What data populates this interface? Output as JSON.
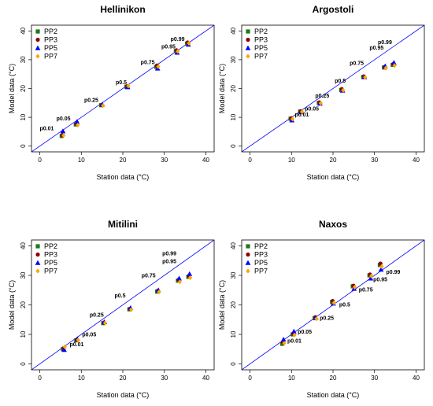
{
  "colors": {
    "PP2": "#1a7a1a",
    "PP3": "#8b0000",
    "PP5": "#0000ff",
    "PP7": "#ffa500",
    "identity": "#0000ff"
  },
  "legend": [
    "PP2",
    "PP3",
    "PP5",
    "PP7"
  ],
  "chart_data": [
    {
      "type": "scatter",
      "title": "Hellinikon",
      "xlabel": "Station data (°C)",
      "ylabel": "Model data (°C)",
      "xlim": [
        -2,
        42
      ],
      "ylim": [
        -2,
        42
      ],
      "xticks": [
        0,
        10,
        20,
        30,
        40
      ],
      "yticks": [
        0,
        10,
        20,
        30,
        40
      ],
      "reference_line": "y = x",
      "x": [
        5.5,
        8.9,
        15.0,
        21.1,
        28.3,
        33.0,
        35.7
      ],
      "series": [
        {
          "name": "PP2",
          "marker": "square",
          "values": [
            3.5,
            7.5,
            14.2,
            20.6,
            27.5,
            33.0,
            35.6
          ]
        },
        {
          "name": "PP3",
          "marker": "circle",
          "values": [
            3.8,
            7.7,
            14.3,
            20.8,
            28.0,
            33.3,
            36.0
          ]
        },
        {
          "name": "PP5",
          "marker": "triangle",
          "values": [
            5.2,
            8.5,
            14.5,
            20.5,
            27.0,
            32.5,
            35.3
          ]
        },
        {
          "name": "PP7",
          "marker": "diamond",
          "values": [
            3.7,
            7.3,
            14.1,
            20.9,
            27.6,
            32.9,
            35.7
          ]
        }
      ],
      "annotations": [
        {
          "text": "p0.01",
          "x": 0.0,
          "y": 5.5
        },
        {
          "text": "p0.05",
          "x": 4.0,
          "y": 9.0
        },
        {
          "text": "p0.25",
          "x": 10.7,
          "y": 15.3
        },
        {
          "text": "p0.5",
          "x": 18.3,
          "y": 21.5
        },
        {
          "text": "p0.75",
          "x": 24.3,
          "y": 28.5
        },
        {
          "text": "p0.95",
          "x": 29.3,
          "y": 34.0
        },
        {
          "text": "p0.99",
          "x": 31.5,
          "y": 36.5
        }
      ]
    },
    {
      "type": "scatter",
      "title": "Argostoli",
      "xlabel": "Station data (°C)",
      "ylabel": "Model data (°C)",
      "xlim": [
        -2,
        42
      ],
      "ylim": [
        -2,
        42
      ],
      "xticks": [
        0,
        10,
        20,
        30,
        40
      ],
      "yticks": [
        0,
        10,
        20,
        30,
        40
      ],
      "reference_line": "y = x",
      "x": [
        10.0,
        12.3,
        16.8,
        22.2,
        27.5,
        32.5,
        34.6
      ],
      "series": [
        {
          "name": "PP2",
          "marker": "square",
          "values": [
            9.5,
            12.0,
            15.0,
            19.5,
            24.0,
            27.3,
            28.2
          ]
        },
        {
          "name": "PP3",
          "marker": "circle",
          "values": [
            9.7,
            12.1,
            15.2,
            19.8,
            24.2,
            27.5,
            28.5
          ]
        },
        {
          "name": "PP5",
          "marker": "triangle",
          "values": [
            9.0,
            11.8,
            14.8,
            19.3,
            24.0,
            27.8,
            29.0
          ]
        },
        {
          "name": "PP7",
          "marker": "diamond",
          "values": [
            9.4,
            11.9,
            14.9,
            19.4,
            23.9,
            27.1,
            28.0
          ]
        }
      ],
      "annotations": [
        {
          "text": "p0.01",
          "x": 10.8,
          "y": 10.3
        },
        {
          "text": "p0.05",
          "x": 13.2,
          "y": 12.3
        },
        {
          "text": "p0.25",
          "x": 15.7,
          "y": 16.8
        },
        {
          "text": "p0.5",
          "x": 20.4,
          "y": 22.0
        },
        {
          "text": "p0.75",
          "x": 24.0,
          "y": 28.2
        },
        {
          "text": "p0.95",
          "x": 28.8,
          "y": 33.5
        },
        {
          "text": "p0.99",
          "x": 30.8,
          "y": 35.5
        }
      ]
    },
    {
      "type": "scatter",
      "title": "Mitilini",
      "xlabel": "Station data (°C)",
      "ylabel": "Model data (°C)",
      "xlim": [
        -2,
        42
      ],
      "ylim": [
        -2,
        42
      ],
      "xticks": [
        0,
        10,
        20,
        30,
        40
      ],
      "yticks": [
        0,
        10,
        20,
        30,
        40
      ],
      "reference_line": "y = x",
      "x": [
        5.8,
        9.0,
        15.5,
        21.8,
        28.5,
        33.5,
        36.0
      ],
      "series": [
        {
          "name": "PP2",
          "marker": "square",
          "values": [
            5.0,
            8.0,
            13.8,
            18.5,
            24.5,
            28.2,
            29.5
          ]
        },
        {
          "name": "PP3",
          "marker": "circle",
          "values": [
            5.3,
            8.2,
            14.0,
            18.7,
            24.8,
            28.5,
            29.8
          ]
        },
        {
          "name": "PP5",
          "marker": "triangle",
          "values": [
            4.8,
            8.5,
            14.2,
            19.0,
            25.0,
            29.0,
            30.5
          ]
        },
        {
          "name": "PP7",
          "marker": "diamond",
          "values": [
            5.8,
            8.1,
            13.9,
            18.4,
            24.4,
            27.8,
            29.2
          ]
        }
      ],
      "annotations": [
        {
          "text": "p0.01",
          "x": 7.2,
          "y": 6.0
        },
        {
          "text": "p0.05",
          "x": 10.2,
          "y": 9.3
        },
        {
          "text": "p0.25",
          "x": 12.0,
          "y": 16.0
        },
        {
          "text": "p0.5",
          "x": 18.0,
          "y": 22.5
        },
        {
          "text": "p0.75",
          "x": 24.5,
          "y": 29.3
        },
        {
          "text": "p0.95",
          "x": 29.5,
          "y": 34.2
        },
        {
          "text": "p0.99",
          "x": 29.5,
          "y": 36.8
        }
      ]
    },
    {
      "type": "scatter",
      "title": "Naxos",
      "xlabel": "Station data (°C)",
      "ylabel": "Model data (°C)",
      "xlim": [
        -2,
        42
      ],
      "ylim": [
        -2,
        42
      ],
      "xticks": [
        0,
        10,
        20,
        30,
        40
      ],
      "yticks": [
        0,
        10,
        20,
        30,
        40
      ],
      "reference_line": "y = x",
      "x": [
        8.0,
        10.5,
        15.8,
        20.0,
        25.0,
        29.0,
        31.5
      ],
      "series": [
        {
          "name": "PP2",
          "marker": "square",
          "values": [
            6.8,
            10.0,
            15.5,
            21.0,
            26.3,
            30.0,
            33.5
          ]
        },
        {
          "name": "PP3",
          "marker": "circle",
          "values": [
            7.3,
            10.2,
            15.8,
            21.3,
            26.5,
            30.3,
            34.0
          ]
        },
        {
          "name": "PP5",
          "marker": "triangle",
          "values": [
            8.3,
            11.0,
            15.7,
            20.5,
            25.5,
            29.0,
            32.0
          ]
        },
        {
          "name": "PP7",
          "marker": "diamond",
          "values": [
            7.0,
            9.8,
            15.3,
            20.7,
            26.0,
            29.8,
            33.0
          ]
        }
      ],
      "annotations": [
        {
          "text": "p0.01",
          "x": 9.0,
          "y": 7.2
        },
        {
          "text": "p0.05",
          "x": 11.5,
          "y": 10.3
        },
        {
          "text": "p0.25",
          "x": 16.8,
          "y": 15.0
        },
        {
          "text": "p0.5",
          "x": 21.5,
          "y": 19.5
        },
        {
          "text": "p0.75",
          "x": 26.2,
          "y": 24.5
        },
        {
          "text": "p0.95",
          "x": 29.7,
          "y": 28.0
        },
        {
          "text": "p0.99",
          "x": 32.8,
          "y": 30.5
        }
      ]
    }
  ]
}
